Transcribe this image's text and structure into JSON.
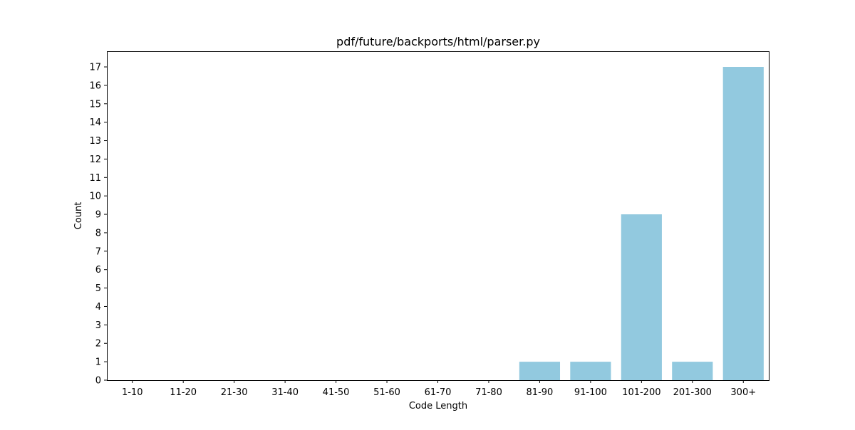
{
  "chart_data": {
    "type": "bar",
    "title": "pdf/future/backports/html/parser.py",
    "xlabel": "Code Length",
    "ylabel": "Count",
    "categories": [
      "1-10",
      "11-20",
      "21-30",
      "31-40",
      "41-50",
      "51-60",
      "61-70",
      "71-80",
      "81-90",
      "91-100",
      "101-200",
      "201-300",
      "300+"
    ],
    "values": [
      0,
      0,
      0,
      0,
      0,
      0,
      0,
      0,
      1,
      1,
      9,
      1,
      17
    ],
    "ylim": [
      0,
      17.85
    ],
    "yticks": [
      0,
      1,
      2,
      3,
      4,
      5,
      6,
      7,
      8,
      9,
      10,
      11,
      12,
      13,
      14,
      15,
      16,
      17
    ],
    "grid": false,
    "legend": "none",
    "bar_color": "#92c9df"
  }
}
